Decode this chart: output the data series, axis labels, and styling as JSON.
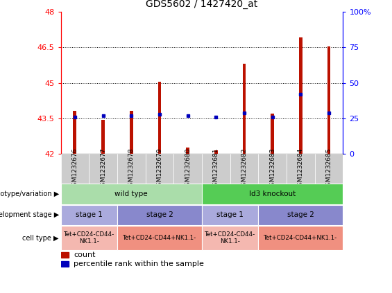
{
  "title": "GDS5602 / 1427420_at",
  "samples": [
    "GSM1232676",
    "GSM1232677",
    "GSM1232678",
    "GSM1232679",
    "GSM1232680",
    "GSM1232681",
    "GSM1232682",
    "GSM1232683",
    "GSM1232684",
    "GSM1232685"
  ],
  "count_values": [
    43.82,
    43.45,
    43.82,
    45.05,
    42.28,
    42.15,
    45.82,
    43.7,
    46.92,
    46.55
  ],
  "percentile_values": [
    26,
    27,
    27,
    28,
    27,
    26,
    29,
    26,
    42,
    29
  ],
  "ymin": 42,
  "ymax": 48,
  "yticks": [
    42,
    43.5,
    45,
    46.5,
    48
  ],
  "ytick_labels": [
    "42",
    "43.5",
    "45",
    "46.5",
    "48"
  ],
  "right_yticks": [
    0,
    25,
    50,
    75,
    100
  ],
  "right_ytick_labels": [
    "0",
    "25",
    "50",
    "75",
    "100%"
  ],
  "bar_color": "#bb1100",
  "dot_color": "#0000bb",
  "bar_width": 0.12,
  "grid_lines": [
    43.5,
    45,
    46.5
  ],
  "genotype_groups": [
    {
      "label": "wild type",
      "start": 0,
      "end": 4,
      "color": "#aaddaa"
    },
    {
      "label": "ld3 knockout",
      "start": 5,
      "end": 9,
      "color": "#55cc55"
    }
  ],
  "dev_stage_groups": [
    {
      "label": "stage 1",
      "start": 0,
      "end": 1,
      "color": "#aaaadd"
    },
    {
      "label": "stage 2",
      "start": 2,
      "end": 4,
      "color": "#8888cc"
    },
    {
      "label": "stage 1",
      "start": 5,
      "end": 6,
      "color": "#aaaadd"
    },
    {
      "label": "stage 2",
      "start": 7,
      "end": 9,
      "color": "#8888cc"
    }
  ],
  "cell_type_groups": [
    {
      "label": "Tet+CD24-CD44-\nNK1.1-",
      "start": 0,
      "end": 1,
      "color": "#f4b8b0"
    },
    {
      "label": "Tet+CD24-CD44+NK1.1-",
      "start": 2,
      "end": 4,
      "color": "#f09080"
    },
    {
      "label": "Tet+CD24-CD44-\nNK1.1-",
      "start": 5,
      "end": 6,
      "color": "#f4b8b0"
    },
    {
      "label": "Tet+CD24-CD44+NK1.1-",
      "start": 7,
      "end": 9,
      "color": "#f09080"
    }
  ],
  "row_labels": [
    "genotype/variation",
    "development stage",
    "cell type"
  ],
  "background_color": "#ffffff",
  "plot_bg_color": "#ffffff",
  "xlabel_bg_color": "#cccccc",
  "legend_count_color": "#bb1100",
  "legend_pct_color": "#0000bb"
}
